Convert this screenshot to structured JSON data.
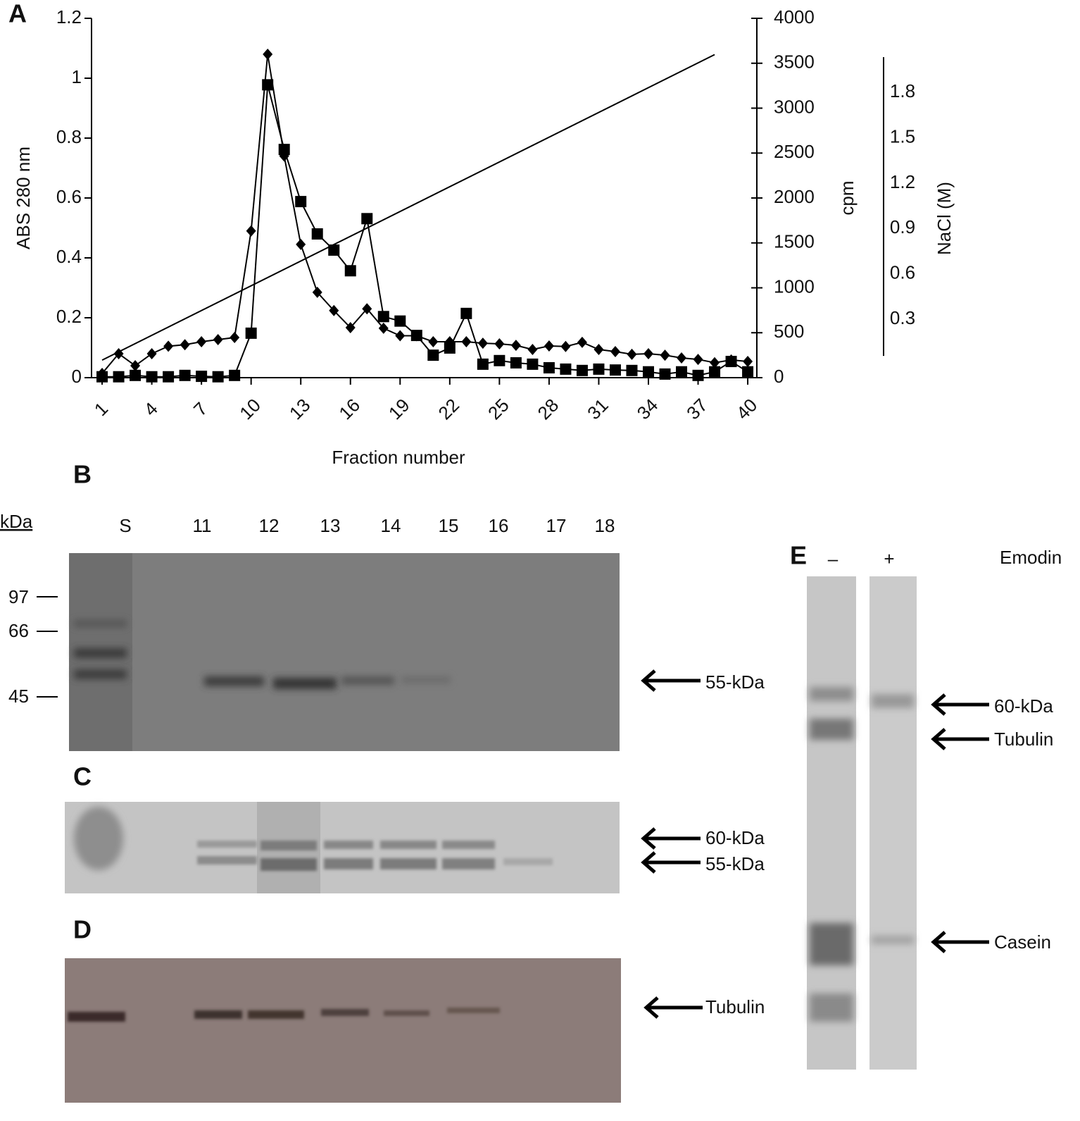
{
  "panel_a": {
    "label": "A"
  },
  "chart_data": {
    "type": "line",
    "x_label": "Fraction number",
    "y_label": "ABS 280 nm",
    "y2_label": "cpm",
    "y3_label": "NaCl (M)",
    "x": [
      1,
      2,
      3,
      4,
      5,
      6,
      7,
      8,
      9,
      10,
      11,
      12,
      13,
      14,
      15,
      16,
      17,
      18,
      19,
      20,
      21,
      22,
      23,
      24,
      25,
      26,
      27,
      28,
      29,
      30,
      31,
      32,
      33,
      34,
      35,
      36,
      37,
      38,
      39,
      40
    ],
    "xlim": [
      0.36,
      40.55
    ],
    "xticks": [
      1,
      4,
      7,
      10,
      13,
      16,
      19,
      22,
      25,
      28,
      31,
      34,
      37,
      40
    ],
    "ylim": [
      0,
      1.2
    ],
    "yticks": [
      0,
      0.2,
      0.4,
      0.6,
      0.8,
      1,
      1.2
    ],
    "y2lim": [
      0,
      4000
    ],
    "y2ticks": [
      0,
      500,
      1000,
      1500,
      2000,
      2500,
      3000,
      3500,
      4000
    ],
    "y3lim": [
      -0.086,
      2.29
    ],
    "y3ticks": [
      0.3,
      0.6,
      0.9,
      1.2,
      1.5,
      1.8
    ],
    "series": [
      {
        "color": "#000000",
        "marker": "diamond",
        "axis": "y",
        "values": [
          0.014,
          0.08,
          0.04,
          0.08,
          0.105,
          0.11,
          0.12,
          0.127,
          0.134,
          0.49,
          1.08,
          0.74,
          0.445,
          0.285,
          0.224,
          0.167,
          0.23,
          0.165,
          0.14,
          0.14,
          0.12,
          0.12,
          0.12,
          0.115,
          0.113,
          0.108,
          0.094,
          0.106,
          0.104,
          0.118,
          0.094,
          0.087,
          0.078,
          0.08,
          0.075,
          0.066,
          0.061,
          0.05,
          0.059,
          0.054
        ]
      },
      {
        "color": "#000000",
        "marker": "square",
        "axis": "y2",
        "values": [
          10,
          10,
          25,
          10,
          10,
          25,
          15,
          10,
          25,
          495,
          3260,
          2540,
          1960,
          1600,
          1420,
          1190,
          1770,
          680,
          630,
          470,
          250,
          330,
          715,
          150,
          190,
          165,
          150,
          110,
          95,
          80,
          95,
          85,
          80,
          65,
          40,
          65,
          25,
          65,
          180,
          65
        ]
      },
      {
        "color": "#000000",
        "marker": "none",
        "axis": "y3",
        "x": [
          1,
          38
        ],
        "values": [
          0.03,
          2.05
        ]
      }
    ]
  },
  "panel_b": {
    "label": "B",
    "unit": "kDa",
    "lanes": [
      "S",
      "11",
      "12",
      "13",
      "14",
      "15",
      "16",
      "17",
      "18"
    ],
    "markers": [
      "97",
      "66",
      "45"
    ],
    "arrows": [
      "55-kDa"
    ]
  },
  "panel_c": {
    "label": "C",
    "arrows": [
      "60-kDa",
      "55-kDa"
    ]
  },
  "panel_d": {
    "label": "D",
    "arrows": [
      "Tubulin"
    ]
  },
  "panel_e": {
    "label": "E",
    "lanes": [
      "–",
      "+"
    ],
    "treatment": "Emodin",
    "arrows": [
      "60-kDa",
      "Tubulin",
      "Casein"
    ]
  }
}
